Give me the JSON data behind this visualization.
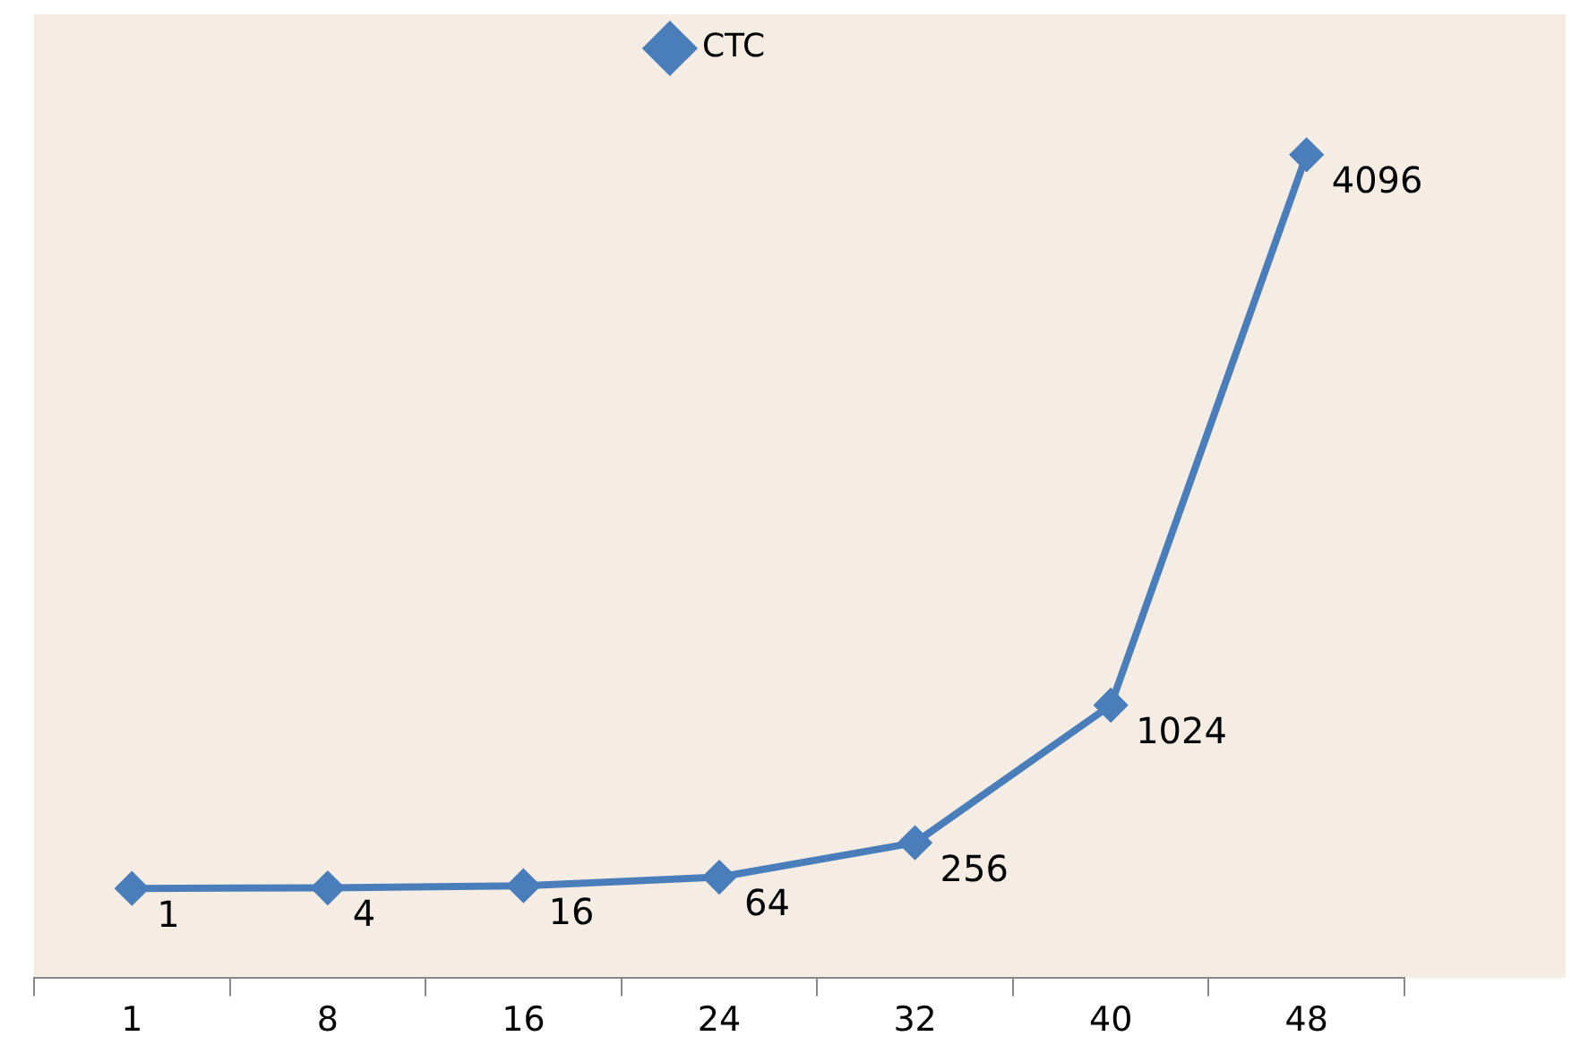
{
  "chart_data": {
    "type": "line",
    "categories": [
      "1",
      "8",
      "16",
      "24",
      "32",
      "40",
      "48"
    ],
    "series": [
      {
        "name": "CTC",
        "color": "#4a7ebb",
        "values": [
          1,
          4,
          16,
          64,
          256,
          1024,
          4096
        ]
      }
    ],
    "data_labels": true,
    "legend": "top",
    "marker": "diamond",
    "grid": false
  }
}
